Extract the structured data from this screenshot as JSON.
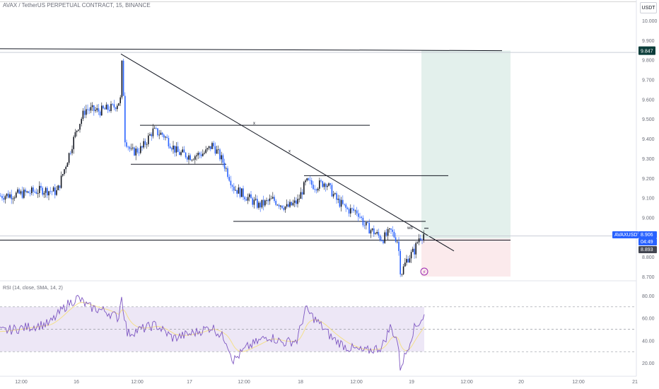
{
  "header": {
    "title": "AVAX / TetherUS PERPETUAL CONTRACT, 15, BINANCE",
    "currency": "USDT"
  },
  "rsi": {
    "label": "RSI (14, close, SMA, 14, 2)"
  },
  "price_tags": {
    "high": "9.847",
    "symbol": "AVAXUSDT.P",
    "last": "8.906",
    "countdown": "04:49",
    "low": "8.893"
  },
  "colors": {
    "bull": "#131722",
    "bear": "#2962ff",
    "profit_zone": "#e3f0ec",
    "loss_zone": "#fbeaec",
    "rsi_line": "#7e57c2",
    "rsi_sma": "#f4e08a",
    "rsi_band": "#ede7f6",
    "tag_dark": "#0b3d3a",
    "tag_blue": "#2962ff"
  },
  "chart_data": {
    "type": "candlestick",
    "symbol": "AVAXUSDT.P",
    "interval": "15",
    "x_ticks": [
      "12:00",
      "16",
      "12:00",
      "17",
      "12:00",
      "18",
      "12:00",
      "19",
      "12:00",
      "20",
      "12:00",
      "21"
    ],
    "y_ticks": [
      "10.000",
      "9.900",
      "9.800",
      "9.700",
      "9.600",
      "9.500",
      "9.400",
      "9.300",
      "9.200",
      "9.100",
      "9.000",
      "8.900",
      "8.800",
      "8.700"
    ],
    "ylim": [
      8.69,
      10.02
    ],
    "rsi_ticks": [
      "80.00",
      "60.00",
      "40.00",
      "20.00"
    ],
    "rsi_ylim": [
      15,
      85
    ],
    "rsi_bands": {
      "upper": 70,
      "middle": 50,
      "lower": 30
    },
    "drawings": {
      "trendline_from": 9.83,
      "horizontal_levels": [
        9.847,
        9.47,
        9.27,
        9.21,
        8.98,
        8.88
      ],
      "labels": [
        "x",
        "x",
        "wb"
      ]
    },
    "position": {
      "entry": 8.893,
      "target": 9.847,
      "stop": 8.7
    }
  }
}
